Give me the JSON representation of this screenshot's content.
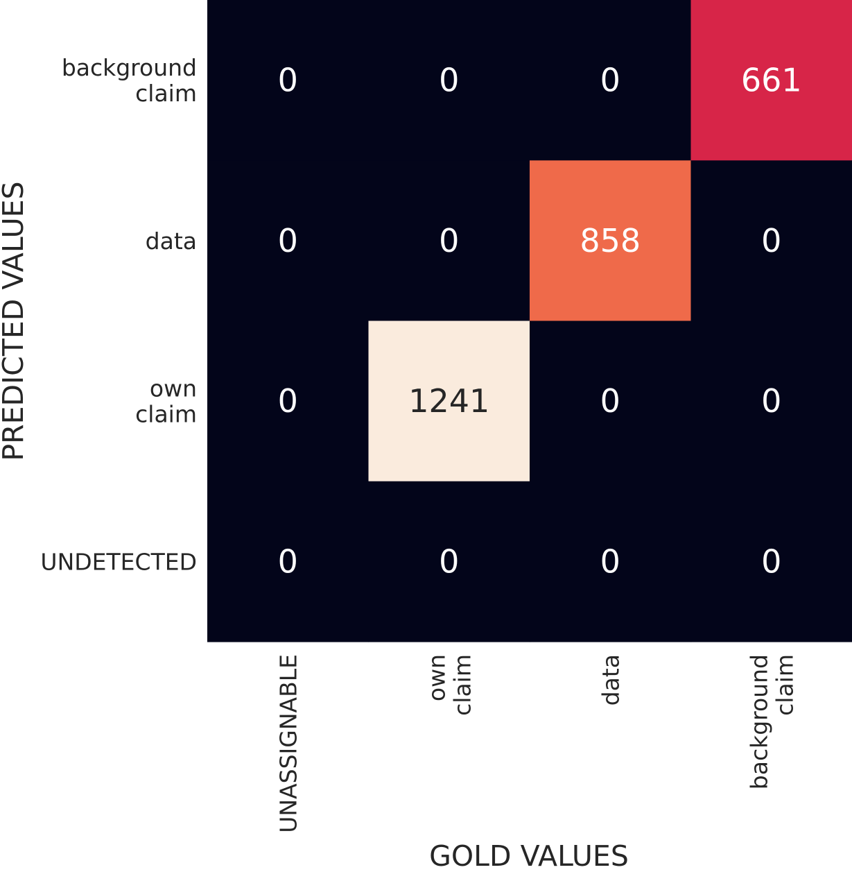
{
  "chart_data": {
    "type": "heatmap",
    "xlabel": "GOLD VALUES",
    "ylabel": "PREDICTED VALUES",
    "x_categories": [
      "UNASSIGNABLE",
      "own\nclaim",
      "data",
      "background\nclaim"
    ],
    "y_categories": [
      "background\nclaim",
      "data",
      "own\nclaim",
      "UNDETECTED"
    ],
    "values": [
      [
        0,
        0,
        0,
        661
      ],
      [
        0,
        0,
        858,
        0
      ],
      [
        0,
        1241,
        0,
        0
      ],
      [
        0,
        0,
        0,
        0
      ]
    ],
    "colorbar": false,
    "colors": {
      "low": "#03051a",
      "661": "#d72548",
      "858": "#ef6a4a",
      "high": "#faebdd"
    }
  }
}
